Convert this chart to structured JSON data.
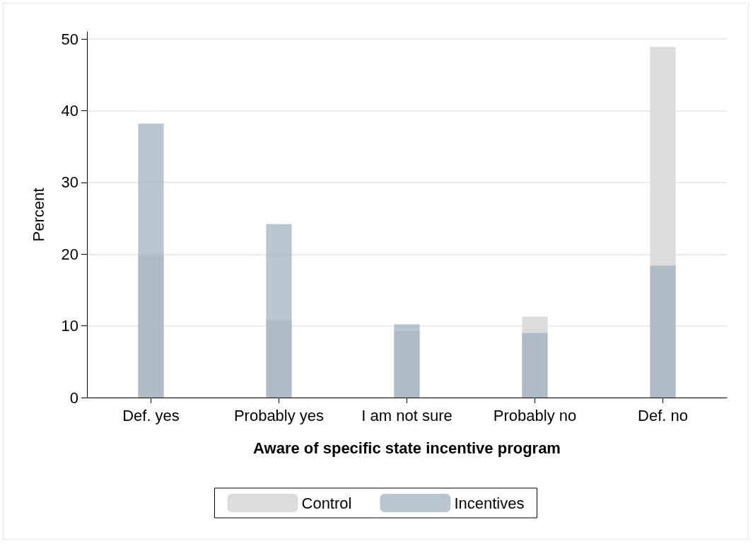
{
  "chart_data": {
    "type": "bar",
    "xlabel": "Aware of specific state incentive program",
    "ylabel": "Percent",
    "categories": [
      "Def. yes",
      "Probably yes",
      "I am not sure",
      "Probably no",
      "Def. no"
    ],
    "series": [
      {
        "name": "Control",
        "color": "#dcdcdc",
        "values": [
          19.8,
          10.8,
          9.3,
          11.3,
          48.9
        ]
      },
      {
        "name": "Incentives",
        "color": "#9fb0bd",
        "values": [
          38.2,
          24.2,
          10.2,
          9.0,
          18.4
        ]
      }
    ],
    "ylim": [
      0,
      51
    ],
    "yticks": [
      0,
      10,
      20,
      30,
      40,
      50
    ],
    "grid": "y",
    "legend": "bottom"
  }
}
